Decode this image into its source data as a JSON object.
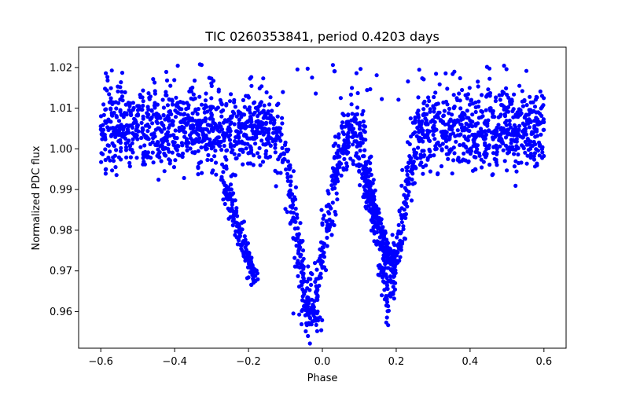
{
  "chart_data": {
    "type": "scatter",
    "title": "TIC 0260353841, period 0.4203 days",
    "xlabel": "Phase",
    "ylabel": "Normalized PDC flux",
    "xlim": [
      -0.66,
      0.66
    ],
    "ylim": [
      0.951,
      1.025
    ],
    "xticks": [
      -0.6,
      -0.4,
      -0.2,
      0.0,
      0.2,
      0.4,
      0.6
    ],
    "xtick_labels": [
      "−0.6",
      "−0.4",
      "−0.2",
      "0.0",
      "0.2",
      "0.4",
      "0.6"
    ],
    "yticks": [
      0.96,
      0.97,
      0.98,
      0.99,
      1.0,
      1.01,
      1.02
    ],
    "ytick_labels": [
      "0.96",
      "0.97",
      "0.98",
      "0.99",
      "1.00",
      "1.01",
      "1.02"
    ],
    "grid": false,
    "series": [
      {
        "name": "PDC flux",
        "color": "#0000ff",
        "marker": "circle",
        "phase_range": [
          -0.6,
          0.6
        ],
        "baseline_flux": 1.005,
        "scatter_halfwidth": 0.0085,
        "primary_eclipse": {
          "center_phase": -0.03,
          "min_flux": 0.962,
          "width": 0.055
        },
        "secondary_eclipse": {
          "center_phase": 0.18,
          "min_flux": 0.966,
          "width": 0.048
        },
        "ingress_branch": {
          "from": [
            -0.27,
            0.995
          ],
          "to": [
            -0.18,
            0.968
          ]
        },
        "egress_branch": {
          "from": [
            0.11,
            0.995
          ],
          "to": [
            0.2,
            0.97
          ]
        }
      }
    ]
  }
}
